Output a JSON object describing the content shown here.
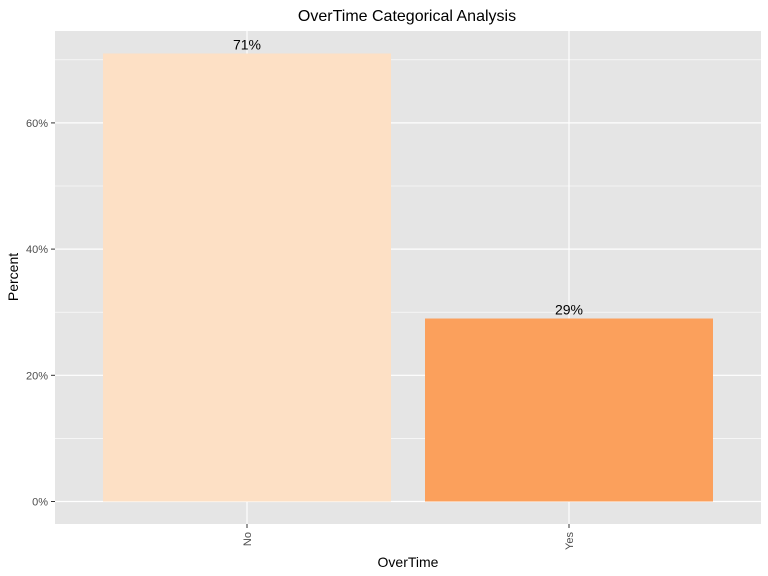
{
  "chart_data": {
    "type": "bar",
    "title": "OverTime Categorical Analysis",
    "xlabel": "OverTime",
    "ylabel": "Percent",
    "categories": [
      "No",
      "Yes"
    ],
    "values": [
      71.0,
      29.0
    ],
    "data_labels": [
      "71%",
      "29%"
    ],
    "yticks": [
      0,
      20,
      40,
      60
    ],
    "ytick_labels": [
      "0%",
      "20%",
      "40%",
      "60%"
    ],
    "ylim": [
      0,
      74.5
    ],
    "grid": true,
    "colors": {
      "bars": [
        "#fde0c5",
        "#fba05c"
      ],
      "panel": "#e5e5e5",
      "grid": "#ffffff",
      "text": "#000000",
      "tick_text": "#4d4d4d"
    }
  }
}
